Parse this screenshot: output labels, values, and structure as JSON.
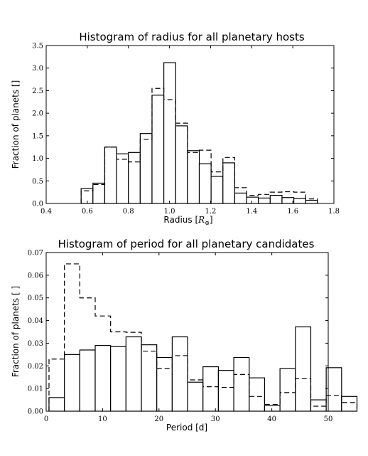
{
  "chart_data": [
    {
      "type": "bar",
      "title": "Histogram of radius for all planetary hosts",
      "xlabel": "Radius [",
      "xlabel_symbol": "R",
      "xlabel_sub": "⊕",
      "xlabel_end": "]",
      "ylabel": "Fraction of planets []",
      "xlim": [
        0.4,
        1.8
      ],
      "ylim": [
        0,
        3.5
      ],
      "xticks": [
        "0.4",
        "0.6",
        "0.8",
        "1.0",
        "1.2",
        "1.4",
        "1.6",
        "1.8"
      ],
      "yticks": [
        "0.0",
        "0.5",
        "1.0",
        "1.5",
        "2.0",
        "2.5",
        "3.0",
        "3.5"
      ],
      "grid": false,
      "series": [
        {
          "style": "solid",
          "bin_start": 0.57,
          "bin_width": 0.0575,
          "values": [
            0.33,
            0.45,
            1.25,
            1.1,
            1.13,
            1.55,
            2.4,
            3.12,
            1.72,
            1.17,
            0.88,
            0.6,
            0.9,
            0.23,
            0.14,
            0.12,
            0.18,
            0.13,
            0.11,
            0.07
          ]
        },
        {
          "style": "dashed",
          "bin_start": 0.57,
          "bin_width": 0.0575,
          "values": [
            0.28,
            0.42,
            1.25,
            0.98,
            0.92,
            1.42,
            2.55,
            2.3,
            1.78,
            1.13,
            1.18,
            0.7,
            1.02,
            0.35,
            0.18,
            0.2,
            0.25,
            0.26,
            0.25,
            0.1
          ]
        }
      ]
    },
    {
      "type": "bar",
      "title": "Histogram of period for all planetary candidates",
      "xlabel": "Period [d]",
      "ylabel": "Fraction of planets [ ]",
      "xlim": [
        0,
        50
      ],
      "ylim": [
        0,
        0.07
      ],
      "xticks": [
        "0",
        "10",
        "20",
        "30",
        "40",
        "50"
      ],
      "yticks": [
        "0.00",
        "0.01",
        "0.02",
        "0.03",
        "0.04",
        "0.05",
        "0.06",
        "0.07"
      ],
      "grid": false,
      "series": [
        {
          "style": "solid",
          "bin_start": 0.5,
          "bin_width": 2.73,
          "values": [
            0.006,
            0.025,
            0.027,
            0.029,
            0.0285,
            0.0328,
            0.0293,
            0.0237,
            0.0328,
            0.0128,
            0.0196,
            0.018,
            0.0237,
            0.0147,
            0.0025,
            0.0188,
            0.0372,
            0.005,
            0.0192,
            0.0065
          ]
        },
        {
          "style": "dashed",
          "bin_start": 0.5,
          "bin_width": 2.73,
          "values": [
            0.023,
            0.065,
            0.05,
            0.042,
            0.035,
            0.0348,
            0.0265,
            0.0188,
            0.0245,
            0.0138,
            0.0108,
            0.0105,
            0.0162,
            0.0065,
            0.003,
            0.0082,
            0.0143,
            0.0022,
            0.007,
            0.0038
          ]
        }
      ]
    }
  ]
}
